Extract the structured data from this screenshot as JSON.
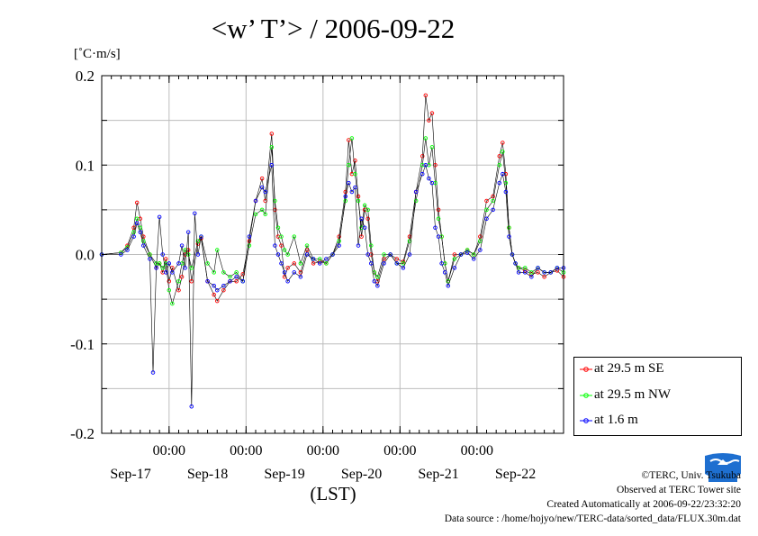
{
  "chart_data": {
    "type": "line",
    "title": "<w’ T’> / 2006-09-22",
    "ylabel": "[˚C·m/s]",
    "xlabel": "(LST)",
    "ylim": [
      -0.2,
      0.2
    ],
    "y_ticks": [
      0.2,
      0.1,
      0.0,
      -0.1,
      -0.2
    ],
    "y_tick_labels": [
      "0.2",
      "0.1",
      "0.0",
      "-0.1",
      "-0.2"
    ],
    "xlim_hours": [
      0,
      144
    ],
    "x_ticks_hours": [
      0,
      12,
      24,
      36,
      48,
      60,
      72,
      84,
      96,
      108,
      120,
      132,
      144
    ],
    "x_major_ticks_hours": [
      21,
      45,
      69,
      93,
      117
    ],
    "x_major_tick_labels": [
      "00:00",
      "00:00",
      "00:00",
      "00:00",
      "00:00"
    ],
    "date_labels": [
      "Sep-17",
      "Sep-18",
      "Sep-19",
      "Sep-20",
      "Sep-21",
      "Sep-22"
    ],
    "date_label_hours": [
      9,
      33,
      57,
      81,
      105,
      129
    ],
    "grid": true,
    "legend_position": "lower-right outside",
    "x_unit": "hours since start of plotted range (start = Sep-16 03:00 LST)",
    "series": [
      {
        "name": "at 29.5 m SE",
        "color": "#ff0000",
        "x": [
          0,
          6,
          8,
          10,
          11,
          12,
          13,
          15,
          17,
          18,
          19,
          20,
          21,
          22,
          24,
          25,
          26,
          27,
          28,
          30,
          31,
          33,
          35,
          36,
          38,
          40,
          42,
          44,
          46,
          48,
          50,
          51,
          53,
          54,
          55,
          56,
          57,
          58,
          60,
          62,
          64,
          66,
          68,
          70,
          72,
          74,
          76,
          77,
          78,
          79,
          80,
          81,
          82,
          83,
          84,
          85,
          86,
          88,
          90,
          92,
          94,
          96,
          98,
          100,
          101,
          102,
          103,
          104,
          105,
          106,
          107,
          108,
          110,
          112,
          114,
          116,
          118,
          120,
          122,
          124,
          125,
          126,
          127,
          128,
          129,
          130,
          132,
          134,
          136,
          138,
          140,
          142,
          144
        ],
        "y": [
          0.0,
          0.002,
          0.01,
          0.03,
          0.058,
          0.04,
          0.02,
          0.0,
          -0.015,
          -0.01,
          -0.02,
          -0.005,
          -0.03,
          -0.015,
          -0.04,
          -0.025,
          0.0,
          0.005,
          -0.03,
          0.012,
          0.018,
          -0.03,
          -0.045,
          -0.052,
          -0.04,
          -0.03,
          -0.03,
          -0.022,
          0.015,
          0.06,
          0.085,
          0.06,
          0.135,
          0.05,
          0.02,
          0.01,
          -0.025,
          -0.015,
          -0.01,
          -0.02,
          0.005,
          -0.01,
          -0.008,
          -0.01,
          0.0,
          0.02,
          0.07,
          0.128,
          0.09,
          0.105,
          0.065,
          0.02,
          0.05,
          0.04,
          0.0,
          -0.02,
          -0.03,
          -0.005,
          0.0,
          -0.005,
          -0.008,
          0.02,
          0.07,
          0.11,
          0.178,
          0.15,
          0.158,
          0.1,
          0.05,
          0.02,
          -0.01,
          -0.03,
          0.0,
          0.0,
          0.005,
          0.0,
          0.02,
          0.06,
          0.065,
          0.11,
          0.125,
          0.09,
          0.03,
          0.0,
          -0.01,
          -0.015,
          -0.018,
          -0.022,
          -0.02,
          -0.025,
          -0.02,
          -0.018,
          -0.025
        ]
      },
      {
        "name": "at 29.5 m NW",
        "color": "#00ff00",
        "x": [
          0,
          6,
          8,
          10,
          11,
          12,
          13,
          15,
          17,
          18,
          19,
          20,
          21,
          22,
          24,
          25,
          26,
          27,
          28,
          30,
          31,
          33,
          35,
          36,
          38,
          40,
          42,
          44,
          46,
          48,
          50,
          51,
          53,
          54,
          55,
          56,
          57,
          58,
          60,
          62,
          64,
          66,
          68,
          70,
          72,
          74,
          76,
          77,
          78,
          79,
          80,
          81,
          82,
          83,
          84,
          85,
          86,
          88,
          90,
          92,
          94,
          96,
          98,
          100,
          101,
          102,
          103,
          104,
          105,
          106,
          107,
          108,
          110,
          112,
          114,
          116,
          118,
          120,
          122,
          124,
          125,
          126,
          127,
          128,
          129,
          130,
          132,
          134,
          136,
          138,
          140,
          142,
          144
        ],
        "y": [
          0.0,
          0.002,
          0.008,
          0.025,
          0.04,
          0.03,
          0.015,
          0.0,
          -0.01,
          -0.01,
          -0.015,
          -0.01,
          -0.04,
          -0.055,
          -0.03,
          -0.01,
          0.005,
          0.0,
          -0.015,
          0.015,
          0.02,
          -0.01,
          -0.02,
          0.005,
          -0.02,
          -0.025,
          -0.02,
          -0.03,
          0.01,
          0.045,
          0.05,
          0.045,
          0.12,
          0.06,
          0.03,
          0.02,
          0.005,
          0.0,
          0.02,
          -0.01,
          0.01,
          -0.005,
          -0.005,
          -0.01,
          0.0,
          0.015,
          0.06,
          0.1,
          0.13,
          0.09,
          0.06,
          0.03,
          0.055,
          0.05,
          0.01,
          -0.02,
          -0.025,
          0.0,
          0.0,
          -0.01,
          -0.01,
          0.015,
          0.06,
          0.1,
          0.13,
          0.1,
          0.12,
          0.08,
          0.04,
          0.02,
          -0.01,
          -0.03,
          -0.005,
          0.0,
          0.005,
          0.0,
          0.015,
          0.05,
          0.06,
          0.1,
          0.115,
          0.08,
          0.03,
          0.0,
          -0.01,
          -0.015,
          -0.015,
          -0.02,
          -0.015,
          -0.02,
          -0.02,
          -0.015,
          -0.02
        ]
      },
      {
        "name": "at 1.6 m",
        "color": "#0000ff",
        "x": [
          0,
          6,
          8,
          10,
          11,
          12,
          13,
          15,
          16,
          17,
          18,
          19,
          20,
          21,
          22,
          24,
          25,
          26,
          27,
          28,
          29,
          30,
          31,
          33,
          35,
          36,
          38,
          40,
          42,
          44,
          46,
          48,
          50,
          51,
          53,
          54,
          55,
          56,
          57,
          58,
          60,
          62,
          64,
          66,
          68,
          70,
          72,
          74,
          76,
          77,
          78,
          79,
          80,
          81,
          82,
          83,
          84,
          85,
          86,
          88,
          90,
          92,
          94,
          96,
          98,
          100,
          101,
          102,
          103,
          104,
          105,
          106,
          107,
          108,
          110,
          112,
          114,
          116,
          118,
          120,
          122,
          124,
          125,
          126,
          127,
          128,
          129,
          130,
          132,
          134,
          136,
          138,
          140,
          142,
          144
        ],
        "y": [
          0.0,
          0.0,
          0.005,
          0.02,
          0.035,
          0.025,
          0.01,
          -0.005,
          -0.132,
          -0.015,
          0.042,
          0.0,
          -0.02,
          -0.01,
          -0.02,
          -0.01,
          0.01,
          -0.015,
          0.025,
          -0.17,
          0.046,
          0.0,
          0.02,
          -0.03,
          -0.035,
          -0.04,
          -0.035,
          -0.03,
          -0.025,
          -0.03,
          0.02,
          0.06,
          0.075,
          0.07,
          0.1,
          0.01,
          0.0,
          -0.01,
          -0.02,
          -0.03,
          -0.02,
          -0.025,
          0.0,
          -0.005,
          -0.01,
          -0.005,
          0.0,
          0.01,
          0.065,
          0.08,
          0.07,
          0.075,
          0.01,
          0.04,
          0.03,
          0.0,
          -0.01,
          -0.03,
          -0.035,
          -0.01,
          0.0,
          -0.01,
          -0.015,
          0.0,
          0.07,
          0.09,
          0.1,
          0.085,
          0.08,
          0.03,
          0.02,
          -0.01,
          -0.02,
          -0.035,
          -0.015,
          0.0,
          0.002,
          -0.005,
          0.005,
          0.04,
          0.05,
          0.08,
          0.09,
          0.07,
          0.02,
          0.0,
          -0.01,
          -0.02,
          -0.02,
          -0.025,
          -0.015,
          -0.02,
          -0.02,
          -0.015,
          -0.015
        ]
      }
    ]
  },
  "legend": {
    "items": [
      {
        "label": "at 29.5 m SE",
        "color": "#ff0000"
      },
      {
        "label": "at 29.5 m NW",
        "color": "#00ff00"
      },
      {
        "label": "at 1.6 m",
        "color": "#0000ff"
      }
    ]
  },
  "credits": {
    "copyright": "©TERC, Univ. Tsukuba",
    "observed": "Observed at TERC Tower site",
    "created": "Created Automatically at 2006-09-22/23:32:20",
    "source": "Data source : /home/hojyo/new/TERC-data/sorted_data/FLUX.30m.dat"
  },
  "logo": {
    "text": "TERC",
    "color": "#1e6fd0"
  }
}
